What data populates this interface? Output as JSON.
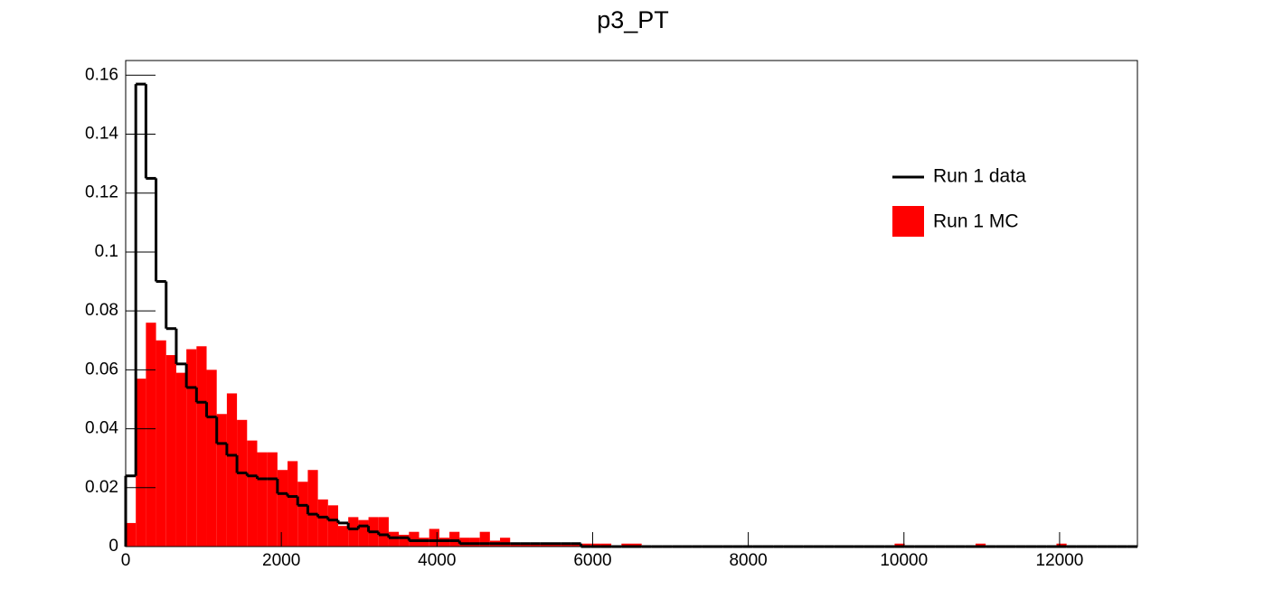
{
  "chart_data": {
    "type": "histogram",
    "title": "p3_PT",
    "bins": [
      0,
      130,
      260,
      390,
      520,
      650,
      780,
      910,
      1040,
      1170,
      1300,
      1430,
      1560,
      1690,
      1820,
      1950,
      2080,
      2210,
      2340,
      2470,
      2600,
      2730,
      2860,
      2990,
      3120,
      3250,
      3380,
      3510,
      3640,
      3770,
      3900,
      4030,
      4160,
      4290,
      4420,
      4550,
      4680,
      4810,
      4940,
      5070,
      5200,
      5330,
      5460,
      5590,
      5720,
      5850,
      5980,
      6110,
      6240,
      6370,
      6500,
      6630,
      6760,
      6890,
      7020,
      7150,
      7280,
      7410,
      7540,
      7670,
      7800,
      7930,
      8060,
      8190,
      8320,
      8450,
      8580,
      8710,
      8840,
      8970,
      9100,
      9230,
      9360,
      9490,
      9620,
      9750,
      9880,
      10010,
      10140,
      10270,
      10400,
      10530,
      10660,
      10790,
      10920,
      11050,
      11180,
      11310,
      11440,
      11570,
      11700,
      11830,
      11960,
      12090,
      12220,
      12350,
      12480,
      12610,
      12740,
      12870,
      13000
    ],
    "series": [
      {
        "name": "Run 1 MC",
        "color": "#ff0000",
        "style": "filled",
        "values": [
          0.008,
          0.057,
          0.076,
          0.07,
          0.065,
          0.059,
          0.067,
          0.068,
          0.06,
          0.045,
          0.052,
          0.043,
          0.036,
          0.032,
          0.032,
          0.026,
          0.029,
          0.022,
          0.026,
          0.016,
          0.014,
          0.007,
          0.01,
          0.009,
          0.01,
          0.01,
          0.005,
          0.004,
          0.005,
          0.003,
          0.006,
          0.003,
          0.005,
          0.003,
          0.003,
          0.005,
          0.002,
          0.003,
          0.001,
          0.001,
          0.001,
          0.001,
          0.001,
          0.001,
          0.001,
          0.001,
          0.001,
          0.001,
          0,
          0.001,
          0.001,
          0,
          0,
          0,
          0,
          0,
          0,
          0,
          0,
          0,
          0,
          0,
          0,
          0,
          0,
          0,
          0,
          0,
          0,
          0,
          0,
          0,
          0,
          0,
          0,
          0,
          0.001,
          0,
          0,
          0,
          0,
          0,
          0,
          0,
          0.001,
          0,
          0,
          0,
          0,
          0,
          0,
          0,
          0.001,
          0,
          0,
          0,
          0,
          0,
          0,
          0
        ]
      },
      {
        "name": "Run 1 data",
        "color": "#000000",
        "style": "step",
        "values": [
          0.024,
          0.157,
          0.125,
          0.09,
          0.074,
          0.062,
          0.054,
          0.049,
          0.044,
          0.035,
          0.031,
          0.025,
          0.024,
          0.023,
          0.023,
          0.018,
          0.017,
          0.014,
          0.011,
          0.01,
          0.009,
          0.008,
          0.006,
          0.007,
          0.005,
          0.004,
          0.003,
          0.003,
          0.002,
          0.002,
          0.002,
          0.002,
          0.002,
          0.001,
          0.001,
          0.001,
          0.001,
          0.001,
          0.001,
          0.001,
          0.001,
          0.001,
          0.001,
          0.001,
          0.001,
          0,
          0,
          0,
          0,
          0,
          0,
          0,
          0,
          0,
          0,
          0,
          0,
          0,
          0,
          0,
          0,
          0,
          0,
          0,
          0,
          0,
          0,
          0,
          0,
          0,
          0,
          0,
          0,
          0,
          0,
          0,
          0,
          0,
          0,
          0,
          0,
          0,
          0,
          0,
          0,
          0,
          0,
          0,
          0,
          0,
          0,
          0,
          0,
          0,
          0,
          0,
          0,
          0,
          0,
          0
        ]
      }
    ],
    "xlim": [
      0,
      13000
    ],
    "xticks": [
      0,
      2000,
      4000,
      6000,
      8000,
      10000,
      12000
    ],
    "ylim": [
      0,
      0.165
    ],
    "yticks": [
      0,
      0.02,
      0.04,
      0.06,
      0.08,
      0.1,
      0.12,
      0.14,
      0.16
    ],
    "legend": "top-right"
  }
}
